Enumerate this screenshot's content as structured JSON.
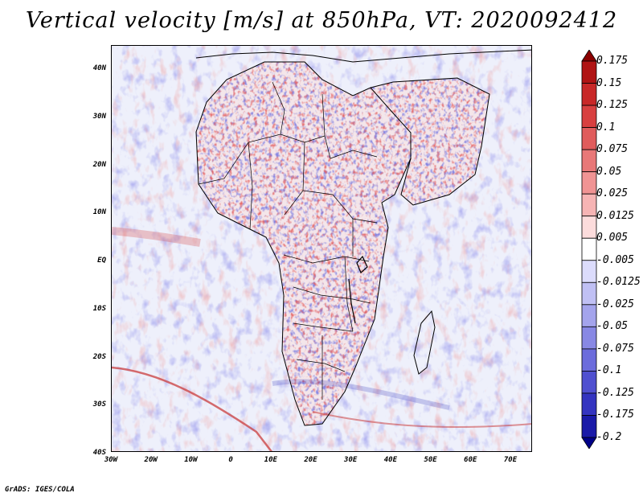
{
  "title": "Vertical velocity [m/s] at 850hPa, VT: 2020092412",
  "credit": "GrADS: IGES/COLA",
  "lat_labels": [
    "40N",
    "30N",
    "20N",
    "10N",
    "EQ",
    "10S",
    "20S",
    "30S",
    "40S"
  ],
  "lon_labels": [
    "30W",
    "20W",
    "10W",
    "0",
    "10E",
    "20E",
    "30E",
    "40E",
    "50E",
    "60E",
    "70E"
  ],
  "colorbar": {
    "levels": [
      "0.175",
      "0.15",
      "0.125",
      "0.1",
      "0.075",
      "0.05",
      "0.025",
      "0.0125",
      "0.005",
      "-0.005",
      "-0.0125",
      "-0.025",
      "-0.05",
      "-0.075",
      "-0.1",
      "-0.125",
      "-0.175",
      "-0.2"
    ],
    "colors": [
      "#8b0000",
      "#b01414",
      "#c82828",
      "#d84040",
      "#e05c5c",
      "#e87878",
      "#f09494",
      "#f6b4b4",
      "#fcdcdc",
      "#ffffff",
      "#dcdcfc",
      "#c0c0f4",
      "#a4a4ec",
      "#8888e4",
      "#6c6cdc",
      "#5050d0",
      "#3434c0",
      "#1a1aa8",
      "#000088"
    ]
  },
  "map_colors": {
    "positive": "#d84040",
    "negative": "#5050d0",
    "land_border": "#000000"
  }
}
